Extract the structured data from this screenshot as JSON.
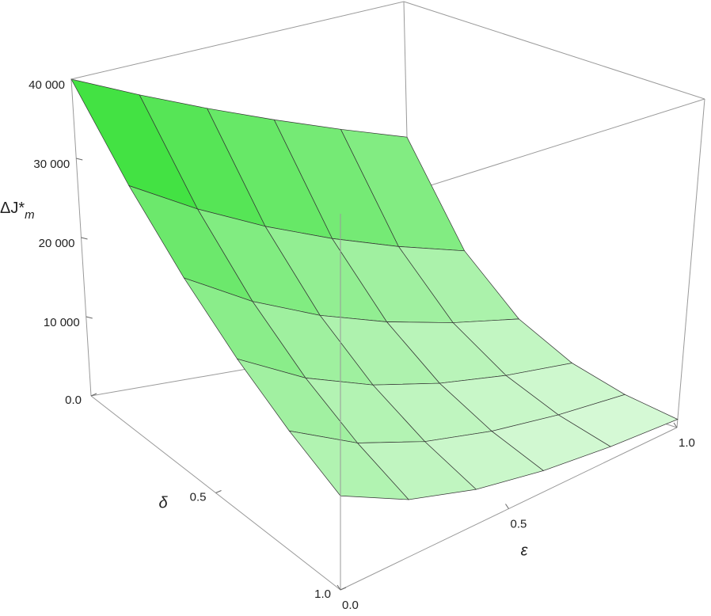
{
  "chart_data": {
    "type": "surface",
    "x_label": "ε",
    "y_label": "δ",
    "z_label": "ΔJ*",
    "z_label_subscript": "m",
    "x": [
      0,
      0.2,
      0.4,
      0.6,
      0.8,
      1
    ],
    "y": [
      0,
      0.2,
      0.4,
      0.6,
      0.8,
      1
    ],
    "z": [
      [
        40000,
        36115,
        32608,
        29441,
        26582,
        24000
      ],
      [
        30314,
        25476,
        21410,
        17997,
        15123,
        12710
      ],
      [
        22974,
        17971,
        14058,
        11002,
        8603,
        6731
      ],
      [
        17411,
        12677,
        9231,
        6725,
        4894,
        3565
      ],
      [
        13196,
        8942,
        6061,
        4111,
        2784,
        1888
      ],
      [
        10000,
        6308,
        3980,
        2513,
        1584,
        1000
      ]
    ],
    "xlim": [
      0,
      1
    ],
    "ylim": [
      0,
      1
    ],
    "zlim": [
      0,
      40000
    ],
    "xticks": [
      {
        "value": 0,
        "label": "0.0"
      },
      {
        "value": 0.5,
        "label": "0.5"
      },
      {
        "value": 1,
        "label": "1.0"
      }
    ],
    "yticks": [
      {
        "value": 0,
        "label": "0.0"
      },
      {
        "value": 0.5,
        "label": "0.5"
      },
      {
        "value": 1,
        "label": "1.0"
      }
    ],
    "zticks": [
      {
        "value": 10000,
        "label": "10 000"
      },
      {
        "value": 20000,
        "label": "20 000"
      },
      {
        "value": 30000,
        "label": "30 000"
      },
      {
        "value": 40000,
        "label": "40 000"
      }
    ],
    "color": "#22dd22"
  }
}
